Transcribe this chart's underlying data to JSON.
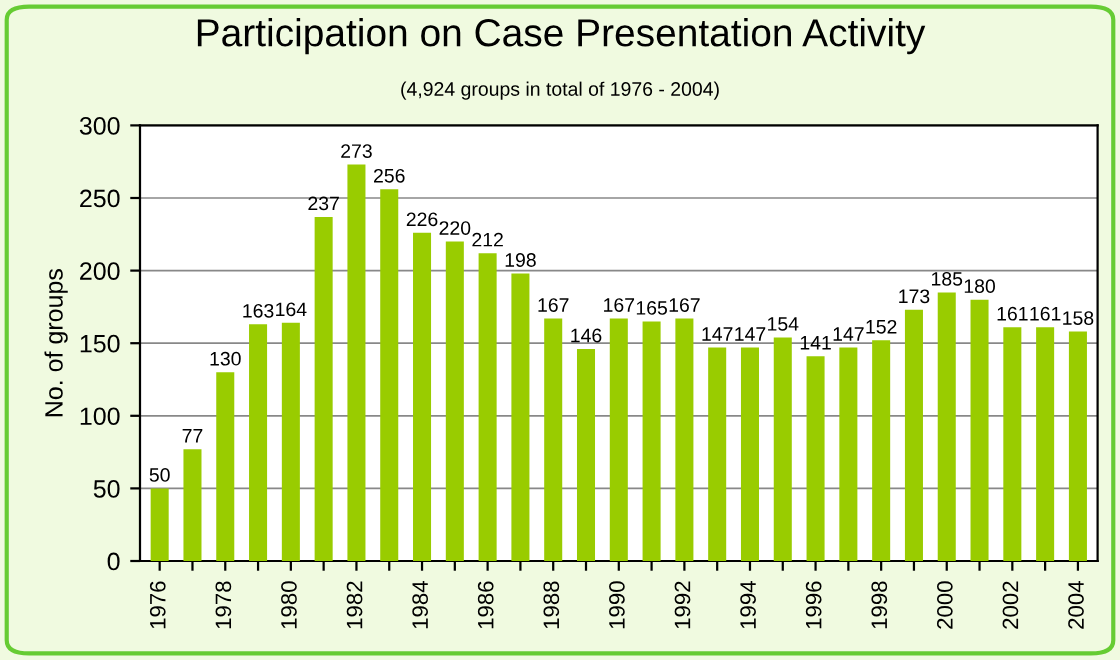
{
  "chart_data": {
    "type": "bar",
    "title": "Participation on Case Presentation Activity",
    "subtitle": "(4,924 groups in total of 1976 - 2004)",
    "ylabel": "No. of groups",
    "categories": [
      "1976",
      null,
      "1978",
      null,
      "1980",
      null,
      "1982",
      null,
      "1984",
      null,
      "1986",
      null,
      "1988",
      null,
      "1990",
      null,
      "1992",
      null,
      "1994",
      null,
      "1996",
      null,
      "1998",
      null,
      "2000",
      null,
      "2002",
      null,
      "2004"
    ],
    "values": [
      50,
      77,
      130,
      163,
      164,
      237,
      273,
      256,
      226,
      220,
      212,
      198,
      167,
      146,
      167,
      165,
      167,
      147,
      147,
      154,
      141,
      147,
      152,
      173,
      185,
      180,
      161,
      161,
      158
    ],
    "color": "#99cc00",
    "ylim": [
      0,
      300
    ],
    "yticks": [
      0,
      50,
      100,
      150,
      200,
      250,
      300
    ],
    "grid": "y",
    "data_labels": true
  }
}
